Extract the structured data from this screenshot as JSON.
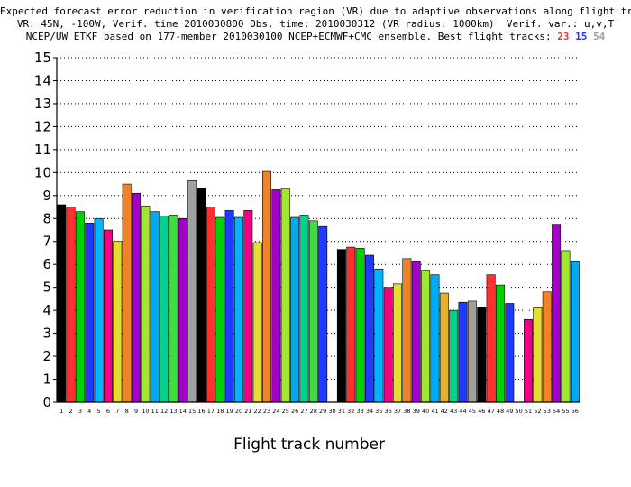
{
  "titles": {
    "line1": "Expected forecast error reduction in verification region (VR) due to adaptive observations along flight tracks.",
    "line2": "VR: 45N, -100W, Verif. time 2010030800 Obs. time: 2010030312 (VR radius: 1000km)  Verif. var.: u,v,T",
    "line3": "NCEP/UW ETKF based on 177-member 2010030100 NCEP+ECMWF+CMC ensemble. Best flight tracks:",
    "best_tracks": [
      {
        "value": "23",
        "color": "#ff3030"
      },
      {
        "value": "15",
        "color": "#1e3cff"
      },
      {
        "value": "54",
        "color": "#a0a0a0"
      }
    ]
  },
  "chart_data": {
    "type": "bar",
    "xlabel": "Flight track number",
    "ylabel": "",
    "ylim": [
      0,
      15
    ],
    "yticks": [
      0,
      1,
      2,
      3,
      4,
      5,
      6,
      7,
      8,
      9,
      10,
      11,
      12,
      13,
      14,
      15
    ],
    "grid": "horizontal dotted",
    "categories": [
      "1",
      "2",
      "3",
      "4",
      "5",
      "6",
      "7",
      "8",
      "9",
      "10",
      "11",
      "12",
      "13",
      "14",
      "15",
      "16",
      "17",
      "18",
      "19",
      "20",
      "21",
      "22",
      "23",
      "24",
      "25",
      "26",
      "27",
      "28",
      "29",
      "30",
      "31",
      "32",
      "33",
      "34",
      "35",
      "36",
      "37",
      "38",
      "39",
      "40",
      "41",
      "42",
      "43",
      "44",
      "45",
      "46",
      "47",
      "48",
      "49",
      "50",
      "51",
      "52",
      "53",
      "54",
      "55",
      "56"
    ],
    "values": [
      8.6,
      8.5,
      8.3,
      7.8,
      8.0,
      7.5,
      7.0,
      9.5,
      9.1,
      8.55,
      8.3,
      8.1,
      8.15,
      8.0,
      9.65,
      9.3,
      8.5,
      8.05,
      8.35,
      8.05,
      8.35,
      6.95,
      10.05,
      9.25,
      9.3,
      8.05,
      8.15,
      7.9,
      7.65,
      null,
      6.65,
      6.75,
      6.7,
      6.4,
      5.8,
      5.0,
      5.15,
      6.25,
      6.15,
      5.75,
      5.55,
      4.75,
      4.0,
      4.35,
      4.4,
      4.15,
      5.55,
      5.1,
      4.3,
      null,
      3.6,
      4.15,
      4.8,
      7.75,
      6.6,
      6.15
    ],
    "colors": [
      "#000000",
      "#ff3030",
      "#00d000",
      "#1e3cff",
      "#00b4ff",
      "#f00082",
      "#e6dc32",
      "#f08228",
      "#a000c8",
      "#a0e632",
      "#00aaf0",
      "#00d28c",
      "#40dd40",
      "#a000c8",
      "#a0a0a0",
      "#000000",
      "#ff3030",
      "#00d000",
      "#1e3cff",
      "#00b4ff",
      "#f00082",
      "#e6dc32",
      "#f08228",
      "#a000c8",
      "#a0e632",
      "#00aaf0",
      "#00d28c",
      "#40dd40",
      "#1e3cff",
      "#ffffff",
      "#000000",
      "#ff3030",
      "#00d000",
      "#1e3cff",
      "#00b4ff",
      "#f00082",
      "#e6dc32",
      "#f08228",
      "#a000c8",
      "#a0e632",
      "#00aaf0",
      "#e6af2d",
      "#00d28c",
      "#1e3cff",
      "#a0a0a0",
      "#000000",
      "#ff3030",
      "#00d000",
      "#1e3cff",
      "#ffffff",
      "#f00082",
      "#e6dc32",
      "#f08228",
      "#a000c8",
      "#a0e632",
      "#00aaf0"
    ]
  }
}
